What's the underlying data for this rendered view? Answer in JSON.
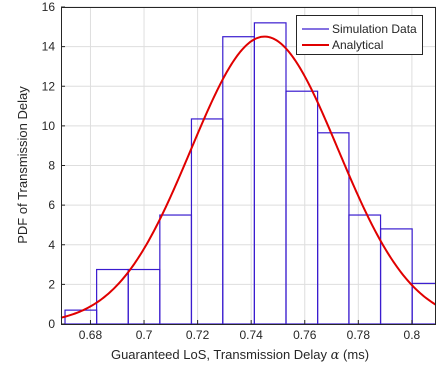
{
  "chart_data": {
    "type": "histogram",
    "xlabel_prefix": "Guaranteed LoS, Transmission Delay ",
    "xlabel_symbol": "α",
    "xlabel_suffix": " (ms)",
    "ylabel": "PDF of Transmission Delay",
    "xlim": [
      0.669,
      0.809
    ],
    "ylim": [
      0,
      16
    ],
    "xticks": [
      0.68,
      0.7,
      0.72,
      0.74,
      0.76,
      0.78,
      0.8
    ],
    "xtick_labels": [
      "0.68",
      "0.7",
      "0.72",
      "0.74",
      "0.76",
      "0.78",
      "0.8"
    ],
    "yticks": [
      0,
      2,
      4,
      6,
      8,
      10,
      12,
      14,
      16
    ],
    "ytick_labels": [
      "0",
      "2",
      "4",
      "6",
      "8",
      "10",
      "12",
      "14",
      "16"
    ],
    "grid": true,
    "legend_position": "top-right",
    "series": [
      {
        "name": "Simulation Data",
        "type": "histogram",
        "color": "#3a1ccf",
        "bins": [
          {
            "x0": 0.6705,
            "x1": 0.6823,
            "value": 0.7
          },
          {
            "x0": 0.6823,
            "x1": 0.6941,
            "value": 2.75
          },
          {
            "x0": 0.6941,
            "x1": 0.7059,
            "value": 2.75
          },
          {
            "x0": 0.7059,
            "x1": 0.7177,
            "value": 5.5
          },
          {
            "x0": 0.7177,
            "x1": 0.7294,
            "value": 10.35
          },
          {
            "x0": 0.7294,
            "x1": 0.7412,
            "value": 14.5
          },
          {
            "x0": 0.7412,
            "x1": 0.753,
            "value": 15.2
          },
          {
            "x0": 0.753,
            "x1": 0.7648,
            "value": 11.75
          },
          {
            "x0": 0.7648,
            "x1": 0.7765,
            "value": 9.65
          },
          {
            "x0": 0.7765,
            "x1": 0.7883,
            "value": 5.5
          },
          {
            "x0": 0.7883,
            "x1": 0.8001,
            "value": 4.8
          },
          {
            "x0": 0.8001,
            "x1": 0.8119,
            "value": 2.05
          }
        ]
      },
      {
        "name": "Analytical",
        "type": "line",
        "color": "#e00000",
        "distribution": "normal",
        "mean": 0.745,
        "std": 0.0275
      }
    ]
  }
}
